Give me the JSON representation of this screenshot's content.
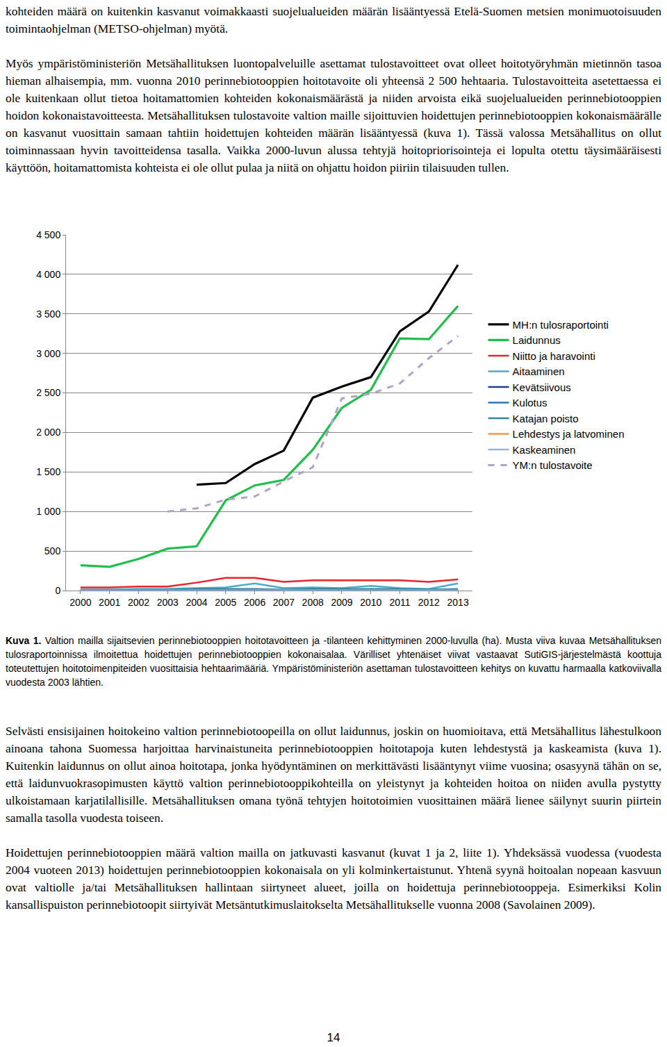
{
  "document": {
    "top_paragraphs": [
      "kohteiden määrä on kuitenkin kasvanut voimakkaasti suojelualueiden määrän lisääntyessä Etelä-Suomen metsien monimuotoisuuden toimintaohjelman (METSO-ohjelman) myötä.",
      "Myös ympäristöministeriön Metsähallituksen luontopalveluille asettamat tulostavoitteet ovat olleet hoitotyöryhmän mietinnön tasoa hieman alhaisempia, mm. vuonna 2010 perinnebiotooppien hoitotavoite oli yhteensä 2 500 hehtaaria. Tulostavoitteita asetettaessa ei ole kuitenkaan ollut tietoa hoitamattomien kohteiden kokonaismäärästä ja niiden arvoista eikä suojelualueiden perinnebiotooppien hoidon kokonaistavoitteesta. Metsähallituksen tulostavoite valtion maille sijoittuvien hoidettujen perinnebiotooppien kokonaismäärälle on kasvanut vuosittain samaan tahtiin hoidettujen kohteiden määrän lisääntyessä (kuva 1). Tässä valossa Metsähallitus on ollut toiminnassaan hyvin tavoitteidensa tasalla. Vaikka 2000-luvun alussa tehtyjä hoitopriorisointeja ei lopulta otettu täysimääräisesti käyttöön, hoitamattomista kohteista ei ole ollut pulaa ja niitä on ohjattu hoidon piiriin tilaisuuden tullen."
    ],
    "caption": {
      "label": "Kuva 1.",
      "text": "Valtion mailla sijaitsevien perinnebiotooppien hoitotavoitteen ja -tilanteen kehittyminen 2000-luvulla (ha). Musta viiva kuvaa Metsähallituksen tulosraportoinnissa ilmoitettua hoidettujen perinnebiotooppien kokonaisalaa. Värilliset yhtenäiset viivat vastaavat SutiGIS-järjestelmästä koottuja toteutettujen hoitotoimenpiteiden vuosittaisia hehtaarimääriä. Ympäristöministeriön asettaman tulostavoitteen kehitys on kuvattu harmaalla katkoviivalla vuodesta 2003 lähtien."
    },
    "bottom_paragraphs": [
      "Selvästi ensisijainen hoitokeino valtion perinnebiotoopeilla on ollut laidunnus, joskin on huomioitava, että Metsähallitus lähestulkoon ainoana tahona Suomessa harjoittaa harvinaistuneita perinnebiotooppien hoitotapoja kuten lehdestystä ja kaskeamista (kuva 1). Kuitenkin laidunnus on ollut ainoa hoitotapa, jonka hyödyntäminen on merkittävästi lisääntynyt viime vuosina; osasyynä tähän on se, että laidunvuokrasopimusten käyttö valtion perinnebiotooppikohteilla on yleistynyt ja kohteiden hoitoa on niiden avulla pystytty ulkoistamaan karjatilallisille. Metsähallituksen omana työnä tehtyjen hoitotoimien vuosittainen määrä lienee säilynyt suurin piirtein samalla tasolla vuodesta toiseen.",
      "Hoidettujen perinnebiotooppien määrä valtion mailla on jatkuvasti kasvanut (kuvat 1 ja 2, liite 1). Yhdeksässä vuodessa (vuodesta 2004 vuoteen 2013) hoidettujen perinnebiotooppien kokonaisala on yli kolminkertaistunut. Yhtenä syynä hoitoalan nopeaan kasvuun ovat valtiolle ja/tai Metsähallituksen hallintaan siirtyneet alueet, joilla on hoidettuja perinnebiotooppeja. Esimerkiksi Kolin kansallispuiston perinnebiotoopit siirtyivät Metsäntutkimuslaitokselta Metsähallitukselle vuonna 2008 (Savolainen 2009)."
    ],
    "page_number": "14"
  },
  "chart_data": {
    "type": "line",
    "categories": [
      "2000",
      "2001",
      "2002",
      "2003",
      "2004",
      "2005",
      "2006",
      "2007",
      "2008",
      "2009",
      "2010",
      "2011",
      "2012",
      "2013"
    ],
    "series": [
      {
        "name": "MH:n tulosraportointi",
        "color": "#000000",
        "line_style": "solid",
        "values": [
          null,
          null,
          null,
          null,
          1340,
          1360,
          1600,
          1770,
          2440,
          2580,
          2700,
          3280,
          3530,
          4120
        ]
      },
      {
        "name": "Laidunnus",
        "color": "#1fbf4b",
        "line_style": "solid",
        "values": [
          320,
          300,
          400,
          530,
          560,
          1140,
          1330,
          1400,
          1780,
          2310,
          2540,
          3190,
          3180,
          3600
        ]
      },
      {
        "name": "Niitto ja haravointi",
        "color": "#e8232a",
        "line_style": "solid",
        "values": [
          40,
          40,
          50,
          50,
          100,
          160,
          160,
          110,
          130,
          130,
          130,
          130,
          110,
          140
        ]
      },
      {
        "name": "Aitaaminen",
        "color": "#4bacc6",
        "line_style": "solid",
        "values": [
          10,
          10,
          20,
          20,
          30,
          40,
          90,
          30,
          40,
          30,
          60,
          30,
          20,
          90
        ]
      },
      {
        "name": "Kevätsiivous",
        "color": "#1f3f8f",
        "line_style": "solid",
        "values": [
          5,
          5,
          5,
          10,
          10,
          10,
          10,
          10,
          10,
          10,
          10,
          10,
          10,
          10
        ]
      },
      {
        "name": "Kulotus",
        "color": "#2e75b6",
        "line_style": "solid",
        "values": [
          0,
          0,
          5,
          5,
          5,
          5,
          5,
          5,
          5,
          5,
          5,
          5,
          5,
          5
        ]
      },
      {
        "name": "Katajan poisto",
        "color": "#31859c",
        "line_style": "solid",
        "values": [
          10,
          10,
          10,
          10,
          20,
          20,
          20,
          10,
          20,
          20,
          20,
          20,
          10,
          20
        ]
      },
      {
        "name": "Lehdestys ja latvominen",
        "color": "#f79646",
        "line_style": "solid",
        "values": [
          0,
          0,
          0,
          0,
          2,
          2,
          2,
          2,
          2,
          2,
          2,
          2,
          2,
          2
        ]
      },
      {
        "name": "Kaskeaminen",
        "color": "#8eb4e3",
        "line_style": "solid",
        "values": [
          0,
          0,
          0,
          0,
          1,
          1,
          1,
          1,
          1,
          1,
          1,
          1,
          1,
          1
        ]
      },
      {
        "name": "YM:n tulostavoite",
        "color": "#b3a2c7",
        "line_style": "dash",
        "values": [
          null,
          null,
          null,
          1000,
          1040,
          1150,
          1190,
          1380,
          1560,
          2430,
          2490,
          2620,
          2940,
          3220
        ]
      }
    ],
    "ylim": [
      0,
      4500
    ],
    "yticks": [
      0,
      500,
      {
        "value": 1000,
        "label": "1 000"
      },
      {
        "value": 1500,
        "label": "1 500"
      },
      {
        "value": 2000,
        "label": "2 000"
      },
      {
        "value": 2500,
        "label": "2 500"
      },
      {
        "value": 3000,
        "label": "3 000"
      },
      {
        "value": 3500,
        "label": "3 500"
      },
      {
        "value": 4000,
        "label": "4 000"
      },
      {
        "value": 4500,
        "label": "4 500"
      }
    ],
    "grid": true,
    "legend": "right"
  }
}
